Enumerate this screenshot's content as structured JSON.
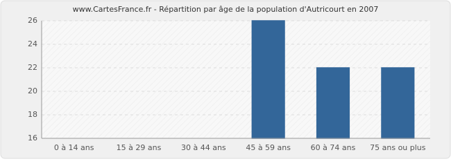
{
  "chart_data": {
    "type": "bar",
    "title": "www.CartesFrance.fr - Répartition par âge de la population d'Autricourt en 2007",
    "categories": [
      "0 à 14 ans",
      "15 à 29 ans",
      "30 à 44 ans",
      "45 à 59 ans",
      "60 à 74 ans",
      "75 ans ou plus"
    ],
    "values": [
      16,
      16,
      16,
      26,
      22,
      22
    ],
    "color": "#336699",
    "ylim": [
      16,
      26
    ],
    "yticks": [
      16,
      18,
      20,
      22,
      24,
      26
    ],
    "grid": true
  }
}
